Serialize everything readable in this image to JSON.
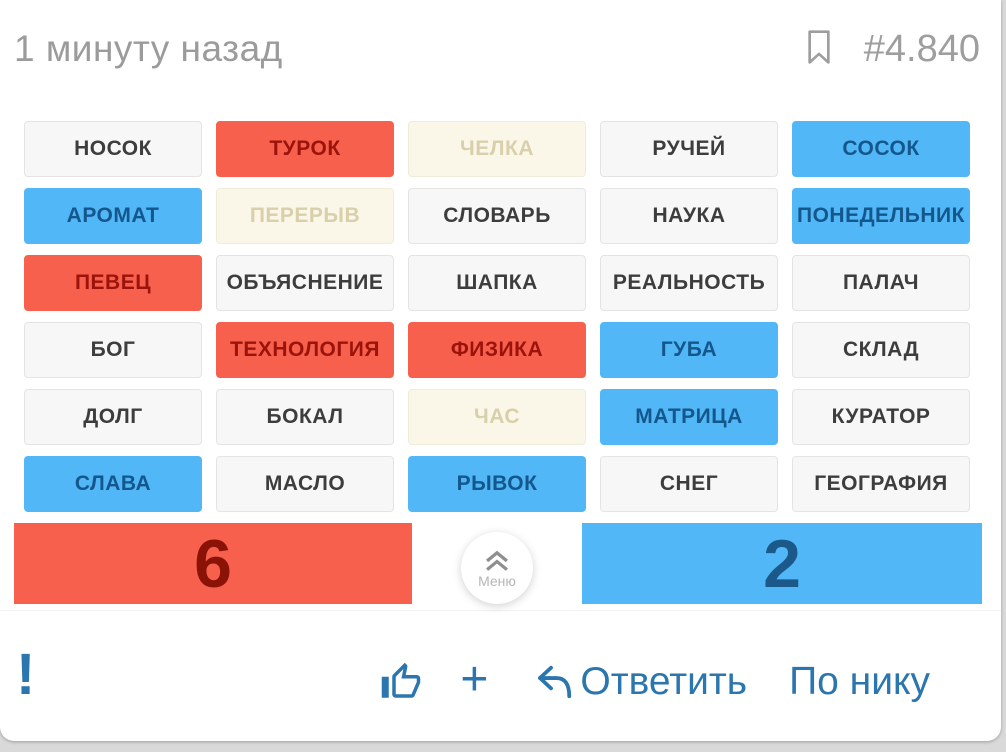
{
  "header": {
    "timestamp": "1 минуту назад",
    "post_number": "#4.840"
  },
  "board": {
    "rows": 6,
    "cols": 5,
    "cards": [
      {
        "label": "НОСОК",
        "state": "neutral"
      },
      {
        "label": "ТУРОК",
        "state": "red"
      },
      {
        "label": "ЧЕЛКА",
        "state": "faded"
      },
      {
        "label": "РУЧЕЙ",
        "state": "neutral"
      },
      {
        "label": "СОСОК",
        "state": "blue"
      },
      {
        "label": "АРОМАТ",
        "state": "blue"
      },
      {
        "label": "ПЕРЕРЫВ",
        "state": "faded"
      },
      {
        "label": "СЛОВАРЬ",
        "state": "neutral"
      },
      {
        "label": "НАУКА",
        "state": "neutral"
      },
      {
        "label": "ПОНЕДЕЛЬНИК",
        "state": "blue"
      },
      {
        "label": "ПЕВЕЦ",
        "state": "red"
      },
      {
        "label": "ОБЪЯСНЕНИЕ",
        "state": "neutral"
      },
      {
        "label": "ШАПКА",
        "state": "neutral"
      },
      {
        "label": "РЕАЛЬНОСТЬ",
        "state": "neutral"
      },
      {
        "label": "ПАЛАЧ",
        "state": "neutral"
      },
      {
        "label": "БОГ",
        "state": "neutral"
      },
      {
        "label": "ТЕХНОЛОГИЯ",
        "state": "red"
      },
      {
        "label": "ФИЗИКА",
        "state": "red"
      },
      {
        "label": "ГУБА",
        "state": "blue"
      },
      {
        "label": "СКЛАД",
        "state": "neutral"
      },
      {
        "label": "ДОЛГ",
        "state": "neutral"
      },
      {
        "label": "БОКАЛ",
        "state": "neutral"
      },
      {
        "label": "ЧАС",
        "state": "faded"
      },
      {
        "label": "МАТРИЦА",
        "state": "blue"
      },
      {
        "label": "КУРАТОР",
        "state": "neutral"
      },
      {
        "label": "СЛАВА",
        "state": "blue"
      },
      {
        "label": "МАСЛО",
        "state": "neutral"
      },
      {
        "label": "РЫВОК",
        "state": "blue"
      },
      {
        "label": "СНЕГ",
        "state": "neutral"
      },
      {
        "label": "ГЕОГРАФИЯ",
        "state": "neutral"
      }
    ]
  },
  "score": {
    "red": "6",
    "blue": "2"
  },
  "menu_button": {
    "label": "Меню",
    "icon": "chevron-double-up-icon"
  },
  "footer": {
    "alert": "!",
    "plus_label": "+",
    "reply_label": "Ответить",
    "by_nick_label": "По нику",
    "icons": [
      "thumbs-up-icon",
      "reply-arrow-icon"
    ]
  },
  "colors": {
    "red_card_bg": "#f7604d",
    "red_card_text": "#9c130b",
    "blue_card_bg": "#52b7f6",
    "blue_card_text": "#14578c",
    "neutral_card_bg": "#f7f7f7",
    "neutral_card_text": "#3d3d3d",
    "faded_card_bg": "#fbf7e8",
    "faded_card_text": "#d9d0ab",
    "score_red_text": "#8a1206",
    "score_blue_text": "#1c598b",
    "header_gray": "#9b9b9b",
    "footer_blue": "#2b76ae"
  }
}
